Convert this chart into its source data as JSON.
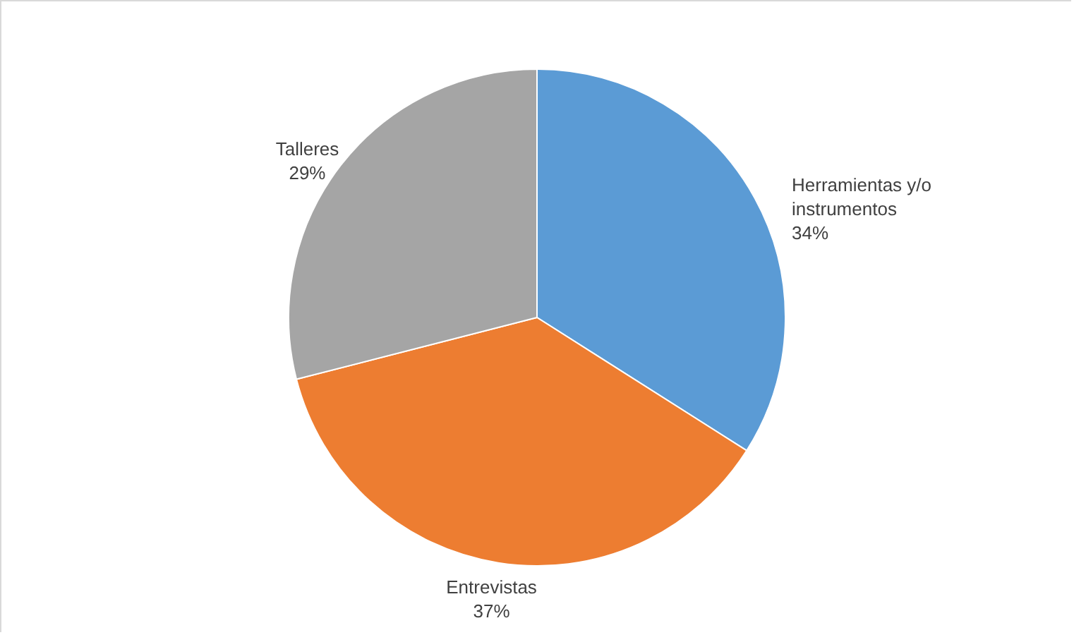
{
  "chart_data": {
    "type": "pie",
    "categories": [
      "Herramientas y/o instrumentos",
      "Entrevistas",
      "Talleres"
    ],
    "values": [
      34,
      37,
      29
    ],
    "colors": [
      "#5b9bd5",
      "#ed7d31",
      "#a5a5a5"
    ],
    "value_labels": [
      "34%",
      "37%",
      "29%"
    ]
  }
}
